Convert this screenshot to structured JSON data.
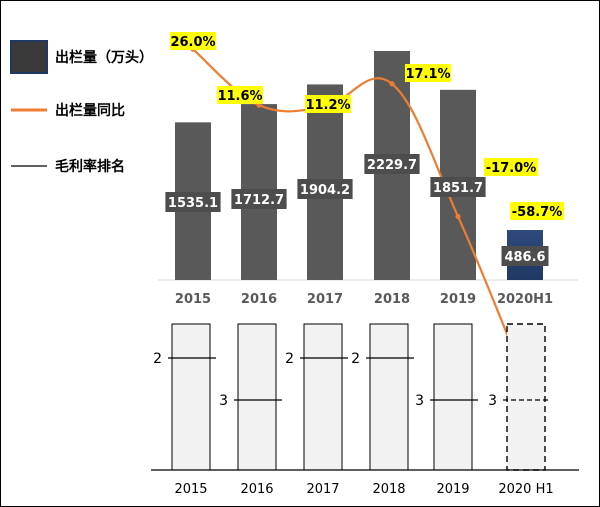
{
  "legend": {
    "bar_label": "出栏量（万头）",
    "line_label": "出栏量同比",
    "margin_label": "毛利率排名"
  },
  "colors": {
    "bar": "#595959",
    "bar_highlight": "#1f3864",
    "line": "#ed7d31",
    "label_bg": "#ffff00",
    "value_label_bg": "#4d4d4d",
    "rank_box": "#f2f2f2"
  },
  "chart_data": [
    {
      "type": "bar",
      "categories": [
        "2015",
        "2016",
        "2017",
        "2018",
        "2019",
        "2020H1"
      ],
      "series": [
        {
          "name": "出栏量（万头）",
          "values": [
            1535.1,
            1712.7,
            1904.2,
            2229.7,
            1851.7,
            486.6
          ]
        }
      ],
      "value_labels": [
        "1535.1",
        "1712.7",
        "1904.2",
        "2229.7",
        "1851.7",
        "486.6"
      ],
      "ylim": [
        0,
        2500
      ],
      "grid": false
    },
    {
      "type": "line",
      "categories": [
        "2015",
        "2016",
        "2017",
        "2018",
        "2019",
        "2020H1"
      ],
      "series": [
        {
          "name": "出栏量同比",
          "values": [
            26.0,
            11.6,
            11.2,
            17.1,
            -17.0,
            -58.7
          ]
        }
      ],
      "value_labels": [
        "26.0%",
        "11.6%",
        "11.2%",
        "17.1%",
        "-17.0%",
        "-58.7%"
      ],
      "ylim": [
        -70,
        35
      ],
      "grid": false
    },
    {
      "type": "bar",
      "categories": [
        "2015",
        "2016",
        "2017",
        "2018",
        "2019",
        "2020 H1"
      ],
      "series": [
        {
          "name": "毛利率排名",
          "values": [
            2,
            3,
            2,
            2,
            3,
            3
          ]
        }
      ],
      "value_labels": [
        "2",
        "3",
        "2",
        "2",
        "3",
        "3"
      ],
      "ylim": [
        0,
        4
      ],
      "grid": false
    }
  ]
}
